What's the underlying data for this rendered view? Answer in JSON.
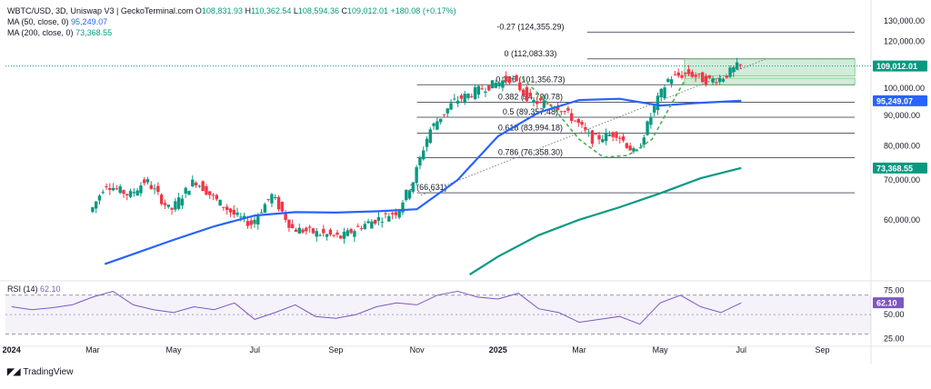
{
  "header": {
    "symbol": "WBTC/USD, 3D, Uniswap V3 | GeckoTerminal.com",
    "o_label": "O",
    "o": "108,831.93",
    "h_label": "H",
    "h": "110,362.54",
    "l_label": "L",
    "l": "108,594.36",
    "c_label": "C",
    "c": "109,012.01",
    "change": "+180.08 (+0.17%)",
    "ma50_label": "MA (50, close, 0)",
    "ma50": "95,249.07",
    "ma200_label": "MA (200, close, 0)",
    "ma200": "73,368.55"
  },
  "rsi": {
    "label": "RSI (14)",
    "value": "62.10"
  },
  "footer": {
    "logo": "TradingView"
  },
  "colors": {
    "up": "#089981",
    "down": "#f23645",
    "ma50": "#2962ff",
    "ma200": "#089981",
    "rsi": "#7e57c2",
    "fib": "#787b86",
    "box": "#b2dfbf",
    "curve": "#4caf50"
  },
  "chart_data": {
    "type": "candlestick",
    "title": "WBTC/USD, 3D, Uniswap V3",
    "ylim": [
      48000,
      136000
    ],
    "y_scale": "log",
    "yticks": [
      {
        "v": 130000,
        "label": "130,000.00"
      },
      {
        "v": 120000,
        "label": "120,000.00"
      },
      {
        "v": 100000,
        "label": "100,000.00"
      },
      {
        "v": 90000,
        "label": "90,000.00"
      },
      {
        "v": 80000,
        "label": "80,000.00"
      },
      {
        "v": 70000,
        "label": "70,000.00"
      },
      {
        "v": 60000,
        "label": "60,000.00"
      }
    ],
    "xticks": [
      {
        "t": 0,
        "label": "2024",
        "bold": true
      },
      {
        "t": 2,
        "label": "Mar"
      },
      {
        "t": 4,
        "label": "May"
      },
      {
        "t": 6,
        "label": "Jul"
      },
      {
        "t": 8,
        "label": "Sep"
      },
      {
        "t": 10,
        "label": "Nov"
      },
      {
        "t": 12,
        "label": "2025",
        "bold": true
      },
      {
        "t": 14,
        "label": "Mar"
      },
      {
        "t": 16,
        "label": "May"
      },
      {
        "t": 18,
        "label": "Jul"
      },
      {
        "t": 20,
        "label": "Sep"
      }
    ],
    "last_t": 18.0,
    "price_badges": [
      {
        "value": 109012.01,
        "label": "109,012.01",
        "color": "#089981"
      },
      {
        "value": 95249.07,
        "label": "95,249.07",
        "color": "#2962ff"
      },
      {
        "value": 73368.55,
        "label": "73,368.55",
        "color": "#089981"
      }
    ],
    "fib_levels": [
      {
        "value": 124355.29,
        "label": "-0.27 (124,355.29)"
      },
      {
        "value": 112083.33,
        "label": "0 (112,083.33)"
      },
      {
        "value": 101356.73,
        "label": "0.236 (101,356.73)"
      },
      {
        "value": 94720.78,
        "label": "0.382 (94,720.78)"
      },
      {
        "value": 89357.48,
        "label": "0.5 (89,357.48)"
      },
      {
        "value": 83994.18,
        "label": "0.618 (83,994.18)"
      },
      {
        "value": 76358.3,
        "label": "0.786 (76,358.30)"
      },
      {
        "value": 66631.0,
        "label": "1 (66,631)"
      }
    ],
    "fib_range_t": [
      10.0,
      20.8
    ],
    "ma50": [
      [
        2.3,
        50500
      ],
      [
        3.0,
        52500
      ],
      [
        4.0,
        55500
      ],
      [
        5.0,
        58500
      ],
      [
        6.0,
        61000
      ],
      [
        7.0,
        61800
      ],
      [
        8.0,
        61700
      ],
      [
        9.0,
        62000
      ],
      [
        10.0,
        62500
      ],
      [
        11.0,
        70000
      ],
      [
        12.0,
        83000
      ],
      [
        13.0,
        91000
      ],
      [
        14.0,
        95500
      ],
      [
        15.0,
        96000
      ],
      [
        16.0,
        93500
      ],
      [
        17.0,
        94500
      ],
      [
        18.0,
        95249
      ]
    ],
    "ma200": [
      [
        11.3,
        48500
      ],
      [
        12.0,
        52000
      ],
      [
        13.0,
        56500
      ],
      [
        14.0,
        60000
      ],
      [
        15.0,
        63000
      ],
      [
        16.0,
        66500
      ],
      [
        17.0,
        70500
      ],
      [
        18.0,
        73368
      ]
    ],
    "rsi_values": [
      [
        0.0,
        58
      ],
      [
        0.5,
        55
      ],
      [
        1.0,
        57
      ],
      [
        1.5,
        60
      ],
      [
        2.0,
        68
      ],
      [
        2.5,
        74
      ],
      [
        3.0,
        60
      ],
      [
        3.5,
        55
      ],
      [
        4.0,
        52
      ],
      [
        4.5,
        58
      ],
      [
        5.0,
        55
      ],
      [
        5.5,
        62
      ],
      [
        6.0,
        45
      ],
      [
        6.5,
        52
      ],
      [
        7.0,
        60
      ],
      [
        7.5,
        48
      ],
      [
        8.0,
        46
      ],
      [
        8.5,
        50
      ],
      [
        9.0,
        58
      ],
      [
        9.5,
        62
      ],
      [
        10.0,
        60
      ],
      [
        10.5,
        70
      ],
      [
        11.0,
        74
      ],
      [
        11.5,
        68
      ],
      [
        12.0,
        66
      ],
      [
        12.5,
        72
      ],
      [
        13.0,
        56
      ],
      [
        13.5,
        52
      ],
      [
        14.0,
        42
      ],
      [
        14.5,
        45
      ],
      [
        15.0,
        48
      ],
      [
        15.5,
        40
      ],
      [
        16.0,
        62
      ],
      [
        16.5,
        70
      ],
      [
        17.0,
        58
      ],
      [
        17.5,
        52
      ],
      [
        18.0,
        62.1
      ]
    ],
    "rsi_ylim": [
      20,
      82
    ],
    "rsi_ticks": [
      {
        "v": 75,
        "label": "75.00"
      },
      {
        "v": 50,
        "label": "50.00"
      },
      {
        "v": 25,
        "label": "25.00"
      }
    ],
    "rsi_badge": "62.10"
  }
}
